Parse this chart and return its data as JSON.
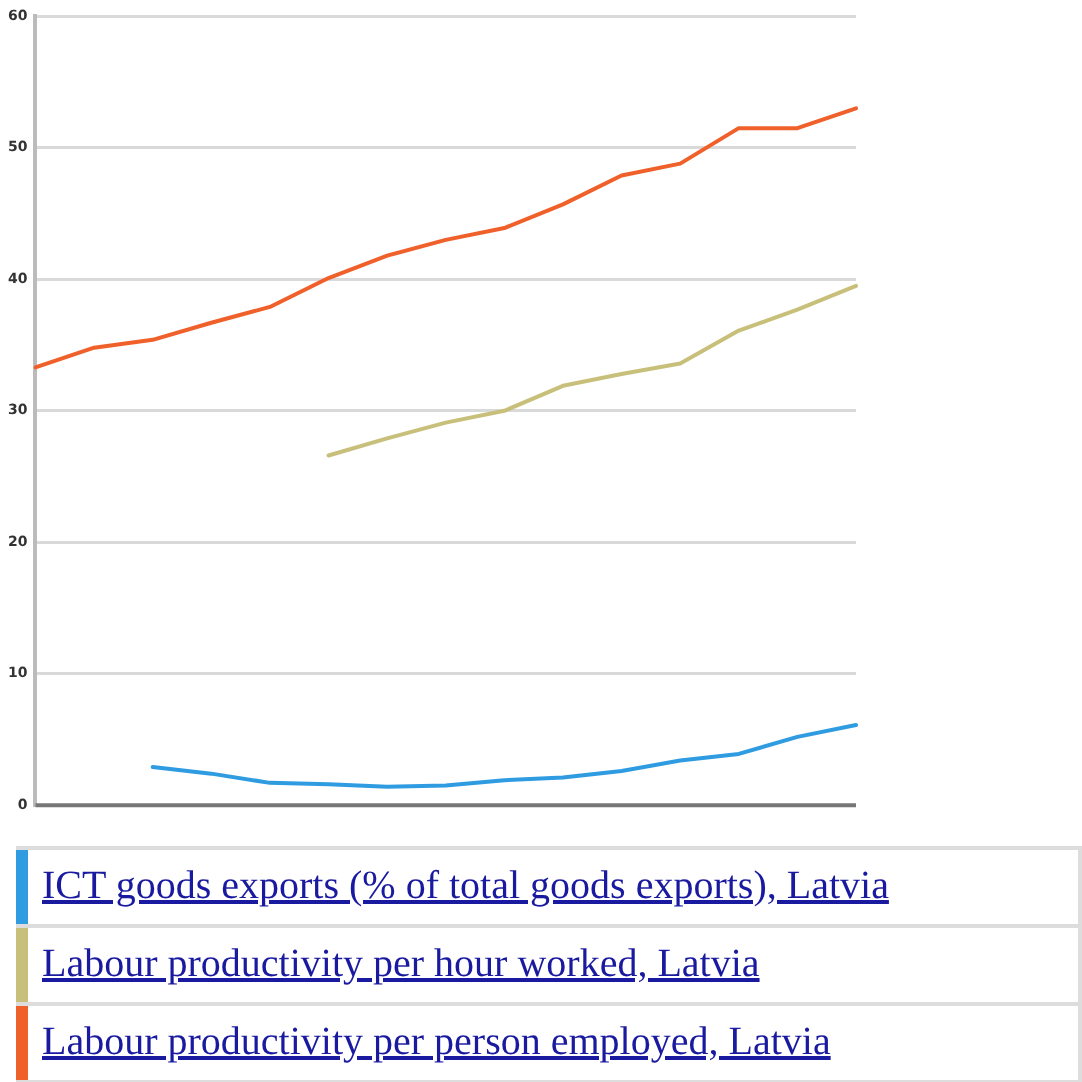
{
  "chart_data": {
    "type": "line",
    "categories": [
      null,
      null,
      null,
      null,
      null,
      null,
      null,
      null,
      null,
      null,
      null,
      null,
      null,
      null,
      null
    ],
    "series": [
      {
        "name": "ICT goods exports (% of total goods exports), Latvia",
        "color": "#2f9be0",
        "values": [
          null,
          null,
          2.9,
          2.4,
          1.7,
          1.6,
          1.4,
          1.5,
          1.9,
          2.1,
          2.6,
          3.4,
          3.9,
          5.2,
          6.1
        ]
      },
      {
        "name": "Labour productivity per hour worked, Latvia",
        "color": "#c8c07a",
        "values": [
          null,
          null,
          null,
          null,
          null,
          26.6,
          27.9,
          29.1,
          30.0,
          31.9,
          32.8,
          33.6,
          36.1,
          37.7,
          39.5
        ]
      },
      {
        "name": "Labour productivity per person employed, Latvia",
        "color": "#f0602a",
        "values": [
          33.3,
          34.8,
          35.4,
          36.7,
          37.9,
          40.1,
          41.8,
          43.0,
          43.9,
          45.7,
          47.9,
          48.8,
          51.5,
          51.5,
          53.0
        ]
      }
    ],
    "ylim": [
      0,
      60
    ],
    "yticks": [
      0,
      10,
      20,
      30,
      40,
      50,
      60
    ],
    "grid": "y",
    "legend": "bottom",
    "marker": "none",
    "line_style": "solid"
  }
}
